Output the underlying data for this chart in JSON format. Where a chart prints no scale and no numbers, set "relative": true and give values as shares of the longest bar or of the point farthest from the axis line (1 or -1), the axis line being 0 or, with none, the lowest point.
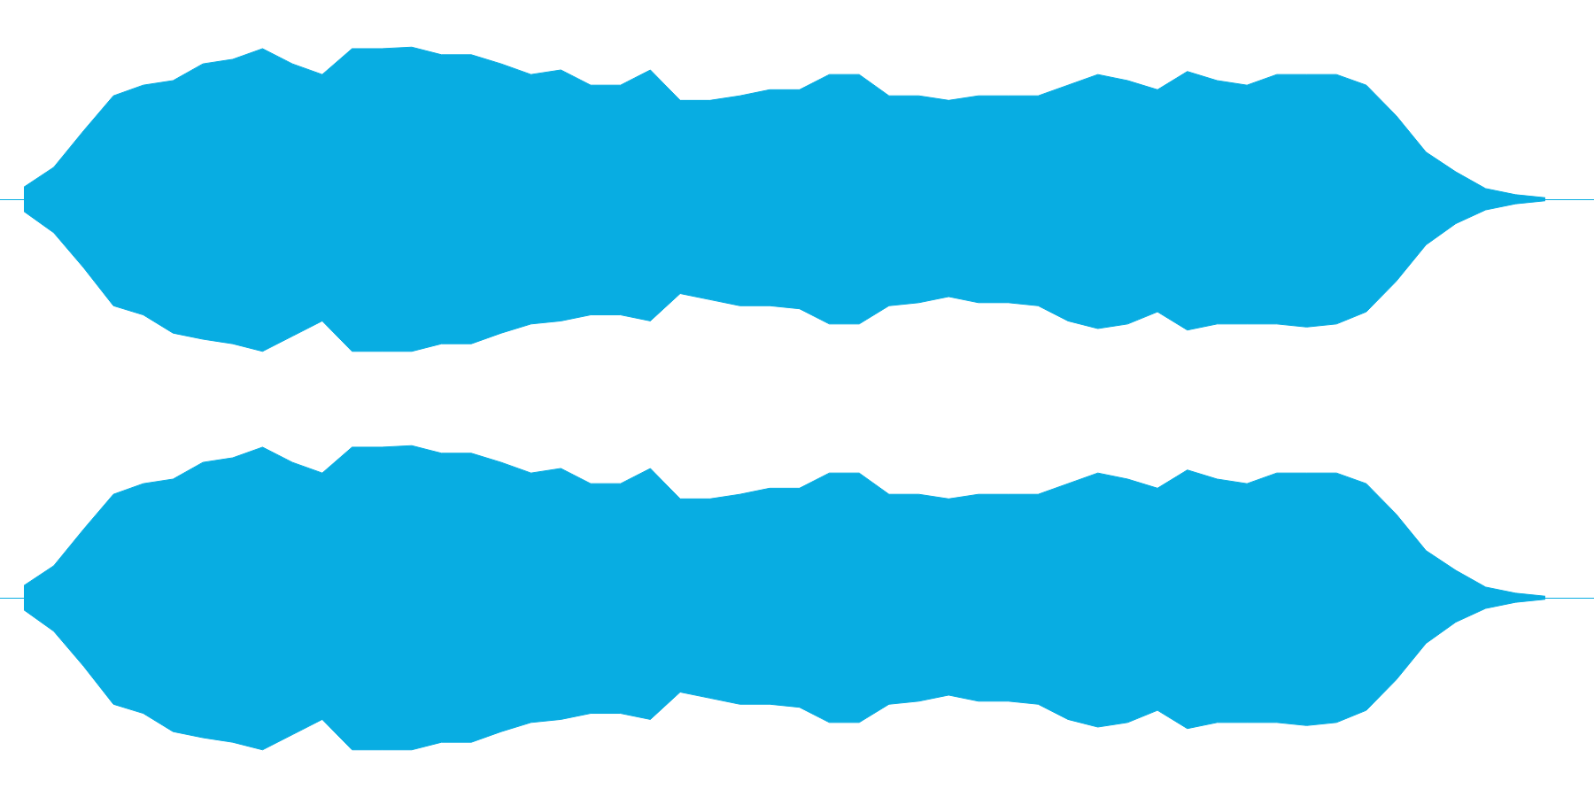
{
  "chart_data": [
    {
      "type": "area",
      "relative": true,
      "tick_labels": false,
      "ref_lines": [
        {
          "axis": "y",
          "value": 0,
          "color": "#08ade2"
        }
      ],
      "categories": [
        null,
        null,
        null,
        null,
        null,
        null,
        null,
        null,
        null,
        null,
        null,
        null,
        null,
        null,
        null,
        null,
        null,
        null,
        null,
        null,
        null,
        null,
        null,
        null,
        null,
        null,
        null,
        null,
        null,
        null,
        null,
        null,
        null,
        null,
        null,
        null,
        null,
        null,
        null,
        null,
        null,
        null,
        null,
        null,
        null,
        null,
        null,
        null,
        null,
        null,
        null,
        null
      ],
      "series": [
        {
          "color": "#08ade2",
          "values": [
            0.08,
            0.21,
            0.45,
            0.68,
            0.75,
            0.78,
            0.89,
            0.92,
            0.99,
            0.89,
            0.82,
            0.99,
            0.99,
            1,
            0.95,
            0.95,
            0.89,
            0.82,
            0.85,
            0.75,
            0.75,
            0.85,
            0.65,
            0.65,
            0.68,
            0.72,
            0.72,
            0.82,
            0.82,
            0.68,
            0.68,
            0.65,
            0.68,
            0.68,
            0.68,
            0.75,
            0.82,
            0.78,
            0.72,
            0.84,
            0.78,
            0.75,
            0.82,
            0.82,
            0.82,
            0.75,
            0.55,
            0.31,
            0.18,
            0.07,
            0.03,
            0.01
          ]
        },
        {
          "color": "#08ade2",
          "values": [
            -0.08,
            -0.22,
            -0.45,
            -0.7,
            -0.76,
            -0.88,
            -0.92,
            -0.95,
            -1,
            -0.9,
            -0.8,
            -1,
            -1,
            -1,
            -0.95,
            -0.95,
            -0.88,
            -0.82,
            -0.8,
            -0.76,
            -0.76,
            -0.8,
            -0.62,
            -0.66,
            -0.7,
            -0.7,
            -0.72,
            -0.82,
            -0.82,
            -0.7,
            -0.68,
            -0.64,
            -0.68,
            -0.68,
            -0.7,
            -0.8,
            -0.85,
            -0.82,
            -0.74,
            -0.86,
            -0.82,
            -0.82,
            -0.82,
            -0.84,
            -0.82,
            -0.74,
            -0.54,
            -0.3,
            -0.16,
            -0.07,
            -0.03,
            -0.01
          ]
        }
      ]
    },
    {
      "type": "area",
      "relative": true,
      "tick_labels": false,
      "ref_lines": [
        {
          "axis": "y",
          "value": 0,
          "color": "#08ade2"
        }
      ],
      "categories": [
        null,
        null,
        null,
        null,
        null,
        null,
        null,
        null,
        null,
        null,
        null,
        null,
        null,
        null,
        null,
        null,
        null,
        null,
        null,
        null,
        null,
        null,
        null,
        null,
        null,
        null,
        null,
        null,
        null,
        null,
        null,
        null,
        null,
        null,
        null,
        null,
        null,
        null,
        null,
        null,
        null,
        null,
        null,
        null,
        null,
        null,
        null,
        null,
        null,
        null,
        null,
        null
      ],
      "series": [
        {
          "color": "#08ade2",
          "values": [
            0.08,
            0.21,
            0.45,
            0.68,
            0.75,
            0.78,
            0.89,
            0.92,
            0.99,
            0.89,
            0.82,
            0.99,
            0.99,
            1,
            0.95,
            0.95,
            0.89,
            0.82,
            0.85,
            0.75,
            0.75,
            0.85,
            0.65,
            0.65,
            0.68,
            0.72,
            0.72,
            0.82,
            0.82,
            0.68,
            0.68,
            0.65,
            0.68,
            0.68,
            0.68,
            0.75,
            0.82,
            0.78,
            0.72,
            0.84,
            0.78,
            0.75,
            0.82,
            0.82,
            0.82,
            0.75,
            0.55,
            0.31,
            0.18,
            0.07,
            0.03,
            0.01
          ]
        },
        {
          "color": "#08ade2",
          "values": [
            -0.08,
            -0.22,
            -0.45,
            -0.7,
            -0.76,
            -0.88,
            -0.92,
            -0.95,
            -1,
            -0.9,
            -0.8,
            -1,
            -1,
            -1,
            -0.95,
            -0.95,
            -0.88,
            -0.82,
            -0.8,
            -0.76,
            -0.76,
            -0.8,
            -0.62,
            -0.66,
            -0.7,
            -0.7,
            -0.72,
            -0.82,
            -0.82,
            -0.7,
            -0.68,
            -0.64,
            -0.68,
            -0.68,
            -0.7,
            -0.8,
            -0.85,
            -0.82,
            -0.74,
            -0.86,
            -0.82,
            -0.82,
            -0.82,
            -0.84,
            -0.82,
            -0.74,
            -0.54,
            -0.3,
            -0.16,
            -0.07,
            -0.03,
            -0.01
          ]
        }
      ]
    }
  ]
}
